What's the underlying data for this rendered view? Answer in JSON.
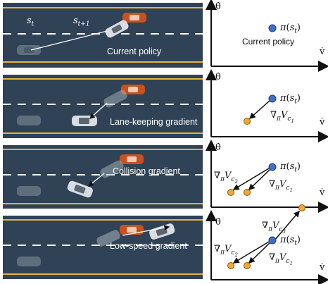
{
  "panels": [
    {
      "caption": "Current policy",
      "state_label_t": "s_t",
      "state_label_t1": "s_{t+1}",
      "policy_label": "π(s_t)",
      "policy_text": "Current policy"
    },
    {
      "caption": "Lane-keeping gradient",
      "policy_label": "π(s_t)",
      "gradient_labels": [
        "∇πVc1"
      ]
    },
    {
      "caption": "Collision gradient",
      "policy_label": "π(s_t)",
      "gradient_labels": [
        "∇πVc2",
        "∇πVc1"
      ]
    },
    {
      "caption": "Low-speed gradient",
      "policy_label": "π(s_t)",
      "gradient_labels": [
        "∇πVc3",
        "∇πVc2",
        "∇πVc1"
      ]
    }
  ],
  "axes": {
    "y_label": "θ̇",
    "x_label": "v̇"
  },
  "colors": {
    "road": "#2f4256",
    "lane_edge": "#e8b43a",
    "lane_dash": "#ffffff",
    "ego_car": "#d7dde3",
    "other_car": "#c8511f",
    "policy_point": "#3f6fc7",
    "gradient_point": "#f0a830"
  }
}
